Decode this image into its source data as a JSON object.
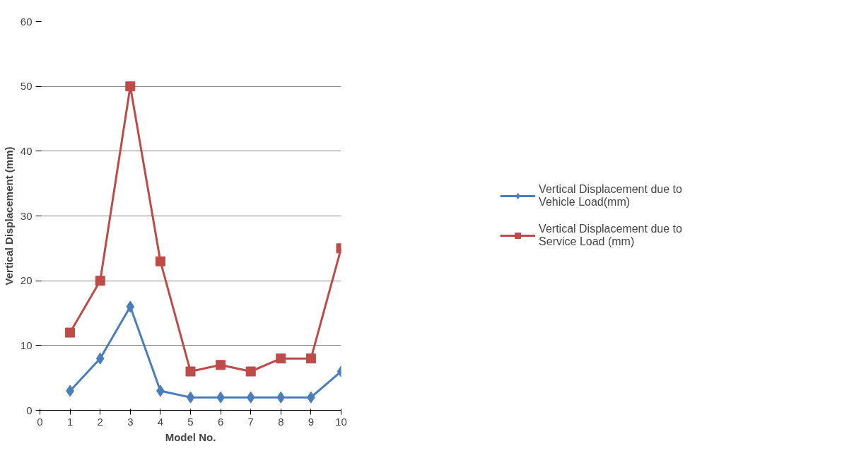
{
  "chart_data": {
    "type": "line",
    "xlabel": "Model No.",
    "ylabel": "Vertical Displacement (mm)",
    "x": [
      1,
      2,
      3,
      4,
      5,
      6,
      7,
      8,
      9,
      10
    ],
    "xlim": [
      0,
      10
    ],
    "xticks": [
      0,
      1,
      2,
      3,
      4,
      5,
      6,
      7,
      8,
      9,
      10
    ],
    "ylim": [
      0,
      60
    ],
    "yticks": [
      0,
      10,
      20,
      30,
      40,
      50,
      60
    ],
    "grid": "y",
    "legend": "right",
    "line_style": "solid",
    "series": [
      {
        "name": "Vertical Displacement due to Vehicle Load(mm)",
        "color": "#4a7ebb",
        "marker": "diamond",
        "values": [
          3,
          8,
          16,
          3,
          2,
          2,
          2,
          2,
          2,
          6
        ]
      },
      {
        "name": "Vertical Displacement due to Service Load (mm)",
        "color": "#be4b48",
        "marker": "square",
        "values": [
          12,
          20,
          50,
          23,
          6,
          7,
          6,
          8,
          8,
          25
        ]
      }
    ]
  }
}
